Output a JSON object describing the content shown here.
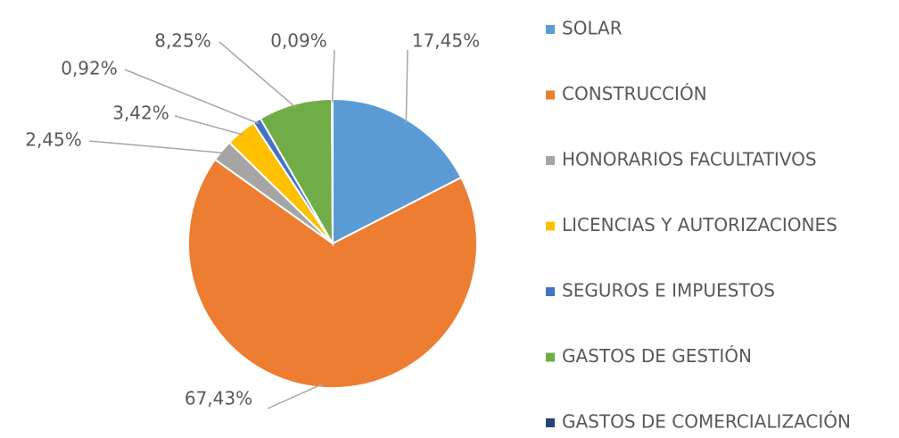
{
  "chart_data": {
    "type": "pie",
    "categories": [
      "SOLAR",
      "CONSTRUCCIÓN",
      "HONORARIOS FACULTATIVOS",
      "LICENCIAS Y AUTORIZACIONES",
      "SEGUROS E IMPUESTOS",
      "GASTOS DE GESTIÓN",
      "GASTOS DE COMERCIALIZACIÓN"
    ],
    "values": [
      17.45,
      67.43,
      2.45,
      3.42,
      0.92,
      8.25,
      0.09
    ],
    "value_labels": [
      "17,45%",
      "67,43%",
      "2,45%",
      "3,42%",
      "0,92%",
      "8,25%",
      "0,09%"
    ],
    "colors": [
      "#5b9bd5",
      "#ed7d31",
      "#a5a5a5",
      "#ffc000",
      "#4472c4",
      "#70ad47",
      "#264478"
    ],
    "legend": "right"
  }
}
